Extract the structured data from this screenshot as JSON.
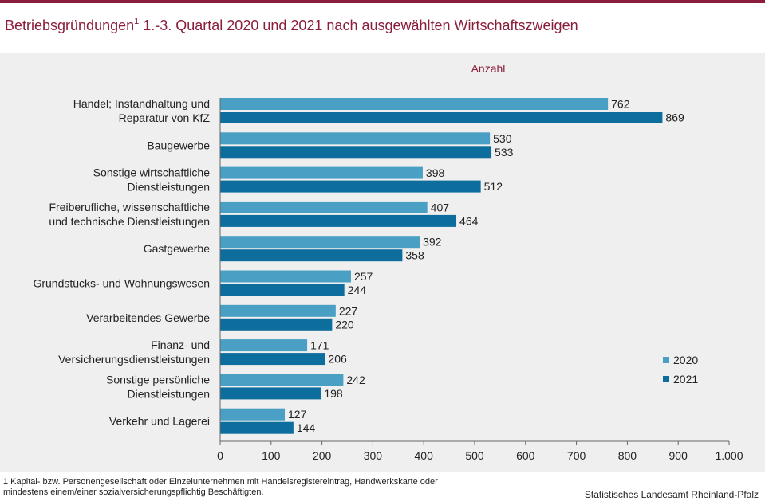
{
  "title": {
    "main_a": "Betriebsgründungen",
    "superscript": "1",
    "main_b": " 1.-3. Quartal 2020 und 2021  nach ausgewählten Wirtschaftszweigen"
  },
  "footnote": "1 Kapital- bzw. Personengesellschaft oder Einzelunternehmen mit Handelsregistereintrag, Handwerkskarte oder mindestens einem/einer sozialversicherungspflichtig Beschäftigten.",
  "source": "Statistisches Landesamt Rheinland-Pfalz",
  "colors": {
    "series2020": "#4aa0c4",
    "series2021": "#0d6e9e",
    "accent": "#8a1d3a"
  },
  "chart_data": {
    "type": "bar",
    "orientation": "horizontal",
    "unit_label": "Anzahl",
    "categories": [
      [
        "Handel; Instandhaltung und",
        "Reparatur von KfZ"
      ],
      [
        "Baugewerbe"
      ],
      [
        "Sonstige wirtschaftliche",
        "Dienstleistungen"
      ],
      [
        "Freiberufliche, wissenschaftliche",
        "und technische Dienstleistungen"
      ],
      [
        "Gastgewerbe"
      ],
      [
        "Grundstücks- und Wohnungswesen"
      ],
      [
        "Verarbeitendes Gewerbe"
      ],
      [
        "Finanz- und",
        "Versicherungsdienstleistungen"
      ],
      [
        "Sonstige persönliche",
        "Dienstleistungen"
      ],
      [
        "Verkehr und Lagerei"
      ]
    ],
    "series": [
      {
        "name": "2020",
        "values": [
          762,
          530,
          398,
          407,
          392,
          257,
          227,
          171,
          242,
          127
        ]
      },
      {
        "name": "2021",
        "values": [
          869,
          533,
          512,
          464,
          358,
          244,
          220,
          206,
          198,
          144
        ]
      }
    ],
    "xlim": [
      0,
      1000
    ],
    "xticks": [
      0,
      100,
      200,
      300,
      400,
      500,
      600,
      700,
      800,
      900,
      1000
    ],
    "xtick_labels": [
      "0",
      "100",
      "200",
      "300",
      "400",
      "500",
      "600",
      "700",
      "800",
      "900",
      "1.000"
    ],
    "legend": [
      "2020",
      "2021"
    ],
    "legend_position": "right"
  }
}
